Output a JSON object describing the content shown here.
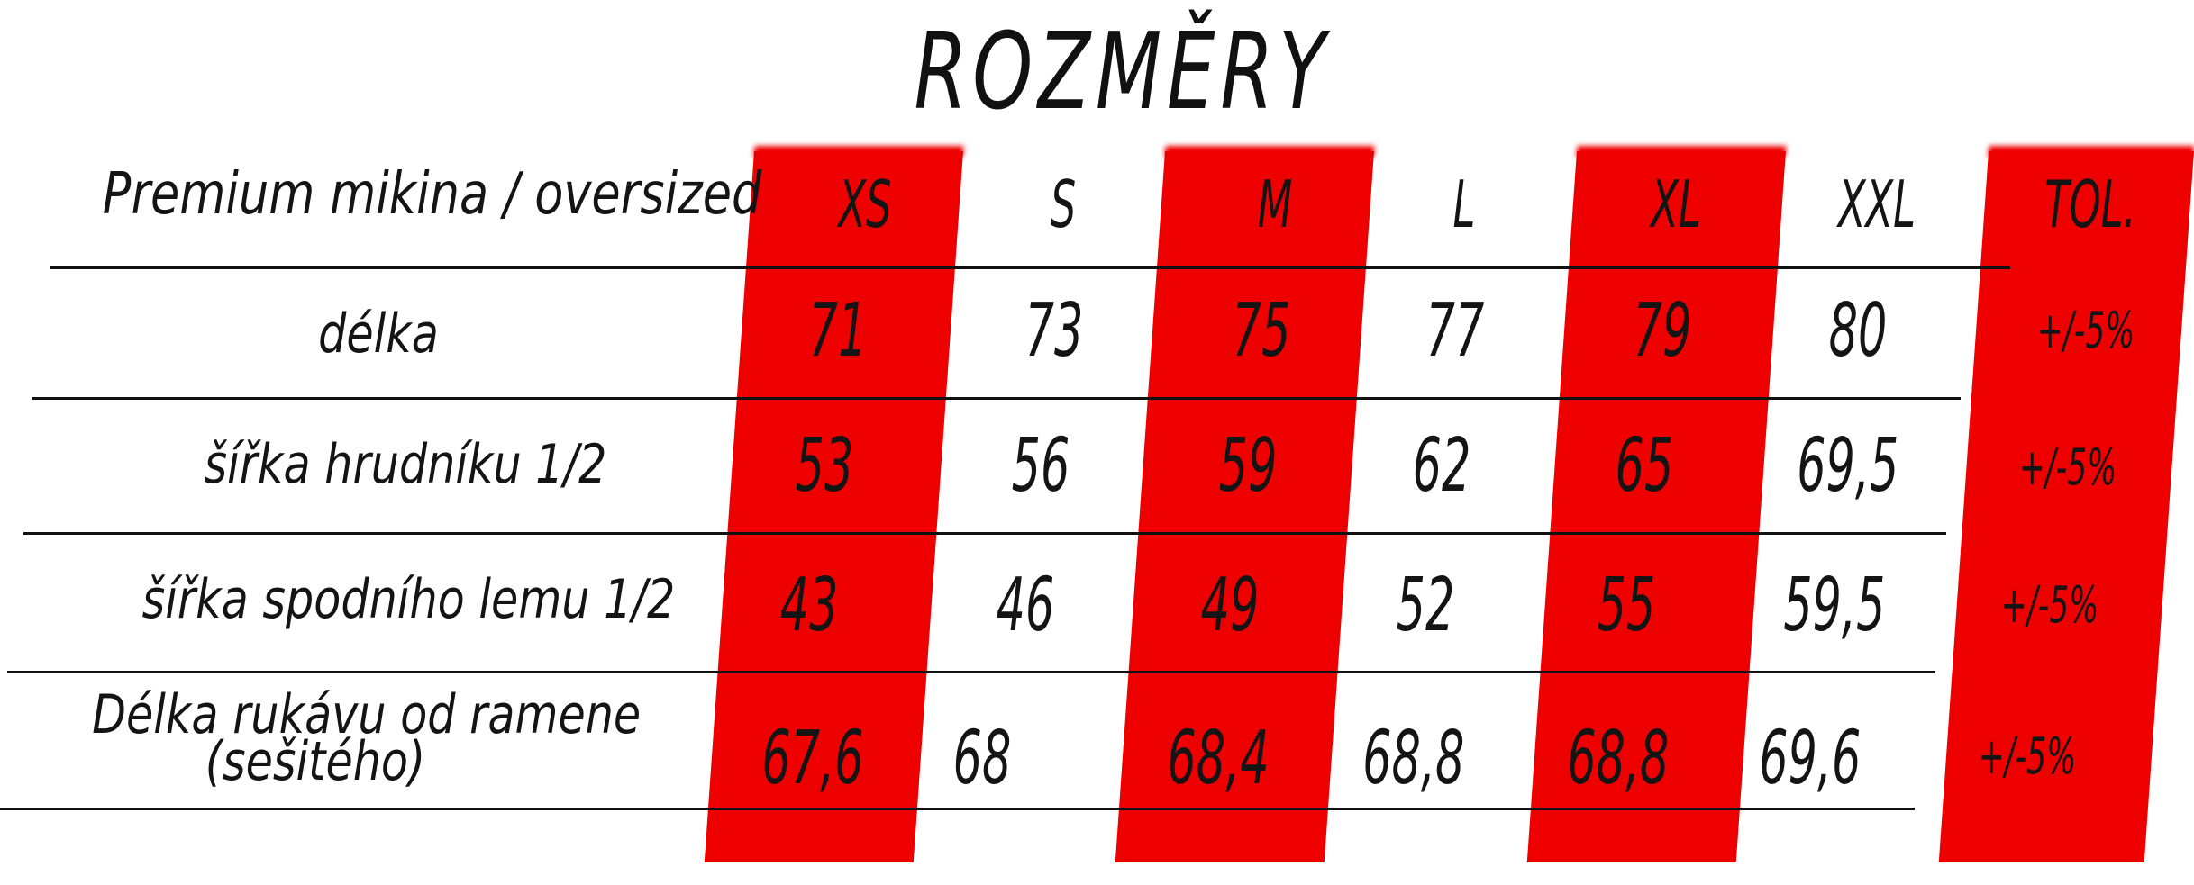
{
  "title": "ROZMĚRY",
  "product_label": "Premium mikina / oversized",
  "accent_color": "#ee0000",
  "sizes": [
    "XS",
    "S",
    "M",
    "L",
    "XL",
    "XXL",
    "TOL."
  ],
  "rows": [
    {
      "label": "délka",
      "values": [
        "71",
        "73",
        "75",
        "77",
        "79",
        "80",
        "+/-5%"
      ]
    },
    {
      "label": "šířka hrudníku 1/2",
      "values": [
        "53",
        "56",
        "59",
        "62",
        "65",
        "69,5",
        "+/-5%"
      ]
    },
    {
      "label": "šířka spodního lemu 1/2",
      "values": [
        "43",
        "46",
        "49",
        "52",
        "55",
        "59,5",
        "+/-5%"
      ]
    },
    {
      "label": "Délka rukávu od ramene",
      "label2": "(sešitého)",
      "values": [
        "67,6",
        "68",
        "68,4",
        "68,8",
        "68,8",
        "69,6",
        "+/-5%"
      ]
    }
  ]
}
